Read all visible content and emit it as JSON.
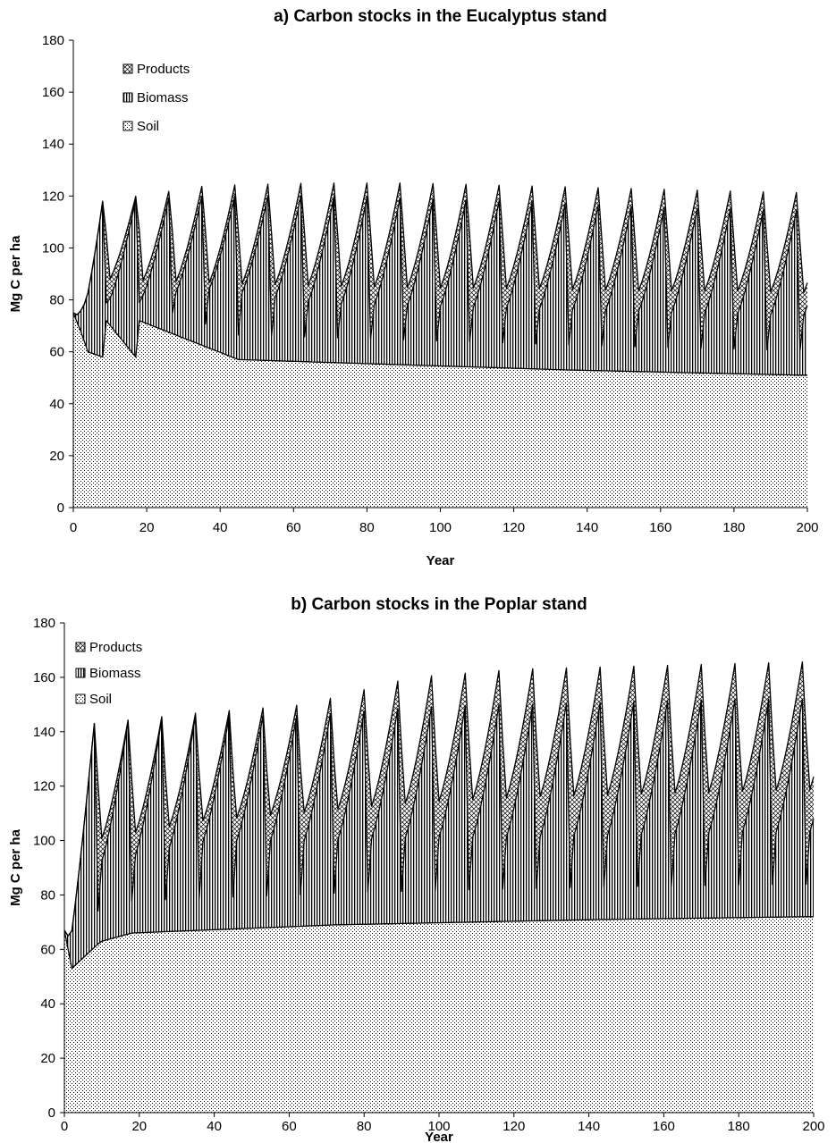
{
  "chart_data": [
    {
      "type": "area",
      "stacked": true,
      "title": "a) Carbon stocks in the Eucalyptus stand",
      "xlabel": "Year",
      "ylabel": "Mg C per ha",
      "xlim": [
        0,
        200
      ],
      "ylim": [
        0,
        180
      ],
      "xticks": [
        0,
        20,
        40,
        60,
        80,
        100,
        120,
        140,
        160,
        180,
        200
      ],
      "yticks": [
        0,
        20,
        40,
        60,
        80,
        100,
        120,
        140,
        160,
        180
      ],
      "grid": false,
      "legend_position": "top-left",
      "legend_order": [
        "Products",
        "Biomass",
        "Soil"
      ],
      "rotation_years": 9,
      "series": [
        {
          "name": "Soil",
          "pattern": "dots",
          "values_at_x": [
            0,
            2,
            4,
            8,
            9,
            17,
            18,
            45,
            90,
            135,
            198
          ],
          "y": [
            75,
            68,
            60,
            58,
            72,
            58,
            72,
            57,
            55,
            53,
            51
          ]
        },
        {
          "name": "Biomass",
          "pattern": "vertical-lines",
          "cumulative_peak": [
            118,
            120,
            120,
            119,
            118,
            116,
            115,
            114
          ],
          "cumulative_trough_after_harvest": [
            78,
            82,
            76,
            75,
            74,
            73,
            72,
            71
          ]
        },
        {
          "name": "Products",
          "pattern": "crosshatch",
          "cumulative_peak": [
            118,
            124,
            125,
            125,
            124,
            123,
            122,
            121
          ],
          "cumulative_trough_after_harvest": [
            86,
            84,
            83,
            82,
            82,
            81,
            81,
            80
          ]
        }
      ]
    },
    {
      "type": "area",
      "stacked": true,
      "title": "b) Carbon stocks in the Poplar stand",
      "xlabel": "Year",
      "ylabel": "Mg C per ha",
      "xlim": [
        0,
        200
      ],
      "ylim": [
        0,
        180
      ],
      "xticks": [
        0,
        20,
        40,
        60,
        80,
        100,
        120,
        140,
        160,
        180,
        200
      ],
      "yticks": [
        0,
        20,
        40,
        60,
        80,
        100,
        120,
        140,
        160,
        180
      ],
      "grid": false,
      "legend_position": "top-left",
      "legend_order": [
        "Products",
        "Biomass",
        "Soil"
      ],
      "rotation_years": 9,
      "series": [
        {
          "name": "Soil",
          "pattern": "dots",
          "values_at_x": [
            0,
            2,
            9,
            10,
            18,
            36,
            72,
            108,
            144,
            198
          ],
          "y": [
            67,
            53,
            62,
            63,
            66,
            67,
            69,
            70,
            71,
            72
          ]
        },
        {
          "name": "Biomass",
          "pattern": "vertical-lines",
          "cumulative_peak": [
            143,
            146,
            146,
            149,
            150,
            151,
            152,
            152
          ],
          "cumulative_trough_after_harvest": [
            89,
            97,
            97,
            98,
            98,
            99,
            100,
            100
          ]
        },
        {
          "name": "Products",
          "pattern": "crosshatch",
          "cumulative_peak": [
            143,
            147,
            150,
            160,
            163,
            164,
            165,
            166
          ],
          "cumulative_trough_after_harvest": [
            98,
            105,
            108,
            111,
            113,
            114,
            115,
            116
          ]
        }
      ]
    }
  ]
}
